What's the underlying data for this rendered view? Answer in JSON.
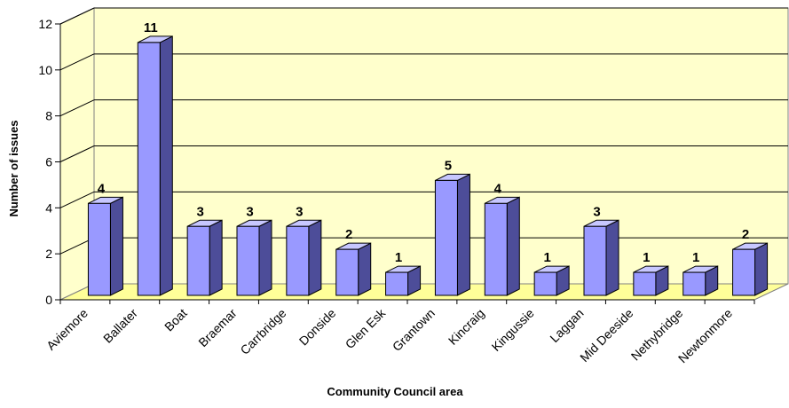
{
  "chart_data": {
    "type": "bar",
    "categories": [
      "Aviemore",
      "Ballater",
      "Boat",
      "Braemar",
      "Carrbridge",
      "Donside",
      "Glen Esk",
      "Grantown",
      "Kincraig",
      "Kingussie",
      "Laggan",
      "Mid Deeside",
      "Nethybridge",
      "Newtonmore"
    ],
    "values": [
      4,
      11,
      3,
      3,
      3,
      2,
      1,
      5,
      4,
      1,
      3,
      1,
      1,
      2
    ],
    "data_labels": [
      "4",
      "11",
      "3",
      "3",
      "3",
      "2",
      "1",
      "5",
      "4",
      "1",
      "3",
      "1",
      "1",
      "2"
    ],
    "xlabel": "Community Council area",
    "ylabel": "Number of issues",
    "ylim": [
      0,
      12
    ],
    "yticks": [
      "0",
      "2",
      "4",
      "6",
      "8",
      "10",
      "12"
    ],
    "grid": true,
    "legend": "none",
    "colors": {
      "bar_front": "#9999ff",
      "bar_side": "#4d4d99",
      "bar_top": "#c7c7ff",
      "back_wall": "#ffffcc",
      "floor": "#ffff99",
      "grid": "#000000"
    }
  }
}
